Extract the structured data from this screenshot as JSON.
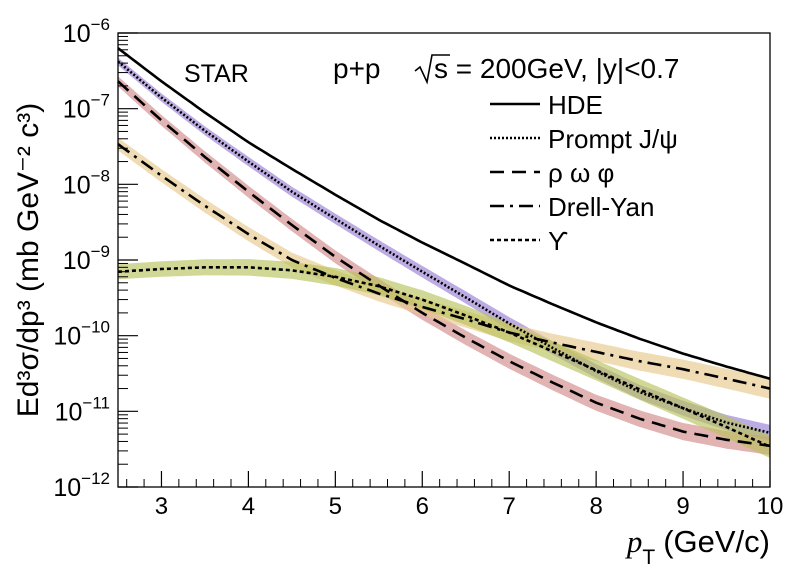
{
  "chart_data": {
    "type": "line",
    "title": "",
    "experiment_label": "STAR",
    "collision_label": "p+p",
    "energy_label": "s = 200GeV, |y|<0.7",
    "xlabel_var": "p",
    "xlabel_sub": "T",
    "xlabel_unit": "(GeV/c)",
    "ylabel": "Ed³σ/dp³ (mb GeV⁻² c³)",
    "xlim": [
      2.5,
      10
    ],
    "ylim_log10": [
      -12,
      -6
    ],
    "y_scale": "log",
    "x_ticks": [
      3,
      4,
      5,
      6,
      7,
      8,
      9,
      10
    ],
    "x_tick_labels": [
      "3",
      "4",
      "5",
      "6",
      "7",
      "8",
      "9",
      "10"
    ],
    "y_ticks_exp": [
      -12,
      -11,
      -10,
      -9,
      -8,
      -7,
      -6
    ],
    "y_tick_labels": [
      {
        "base": "10",
        "exp": "−12"
      },
      {
        "base": "10",
        "exp": "−11"
      },
      {
        "base": "10",
        "exp": "−10"
      },
      {
        "base": "10",
        "exp": "−9"
      },
      {
        "base": "10",
        "exp": "−8"
      },
      {
        "base": "10",
        "exp": "−7"
      },
      {
        "base": "10",
        "exp": "−6"
      }
    ],
    "legend_position": "top-right",
    "x": [
      2.5,
      3,
      3.5,
      4,
      4.5,
      5,
      5.5,
      6,
      6.5,
      7,
      7.5,
      8,
      8.5,
      9,
      9.5,
      10
    ],
    "series": [
      {
        "name": "HDE",
        "style": "solid",
        "color": "#000000",
        "band_color": "",
        "values": [
          6.3e-07,
          2.3e-07,
          8.9e-08,
          3.6e-08,
          1.6e-08,
          7.3e-09,
          3.4e-09,
          1.7e-09,
          8.9e-10,
          4.6e-10,
          2.6e-10,
          1.5e-10,
          9.1e-11,
          5.8e-11,
          3.9e-11,
          2.7e-11
        ]
      },
      {
        "name": "Prompt J/ψ",
        "style": "dotted",
        "color": "#000000",
        "band_color": "#9a7fd4",
        "values": [
          4.2e-07,
          1.4e-07,
          5.1e-08,
          2e-08,
          8e-09,
          3.5e-09,
          1.55e-09,
          7e-10,
          3.2e-10,
          1.45e-10,
          6.9e-11,
          3.4e-11,
          1.8e-11,
          1.1e-11,
          7.1e-12,
          5.2e-12
        ]
      },
      {
        "name": "ρ ω φ",
        "style": "dashed",
        "color": "#000000",
        "band_color": "#d18a8a",
        "values": [
          2.3e-07,
          7e-08,
          2.3e-08,
          8e-09,
          2.9e-09,
          1.1e-09,
          4.6e-10,
          2e-10,
          9.4e-11,
          4.6e-11,
          2.4e-11,
          1.3e-11,
          8e-12,
          5.4e-12,
          4.2e-12,
          3.5e-12
        ]
      },
      {
        "name": "Drell-Yan",
        "style": "dashdot",
        "color": "#000000",
        "band_color": "#e8c98c",
        "values": [
          3.4e-08,
          1.3e-08,
          5.2e-09,
          2.2e-09,
          1e-09,
          5.8e-10,
          3.6e-10,
          2.4e-10,
          1.65e-10,
          1.1e-10,
          8.1e-11,
          6.1e-11,
          4.6e-11,
          3.6e-11,
          2.7e-11,
          2e-11
        ]
      },
      {
        "name": "ϒ",
        "style": "short-dash",
        "color": "#000000",
        "band_color": "#b9c25a",
        "values": [
          7e-10,
          7.6e-10,
          8e-10,
          8e-10,
          7.3e-10,
          6e-10,
          4.5e-10,
          3e-10,
          1.85e-10,
          1.1e-10,
          6.2e-11,
          3.5e-11,
          1.95e-11,
          1.1e-11,
          6.2e-12,
          3.4e-12
        ]
      }
    ]
  }
}
